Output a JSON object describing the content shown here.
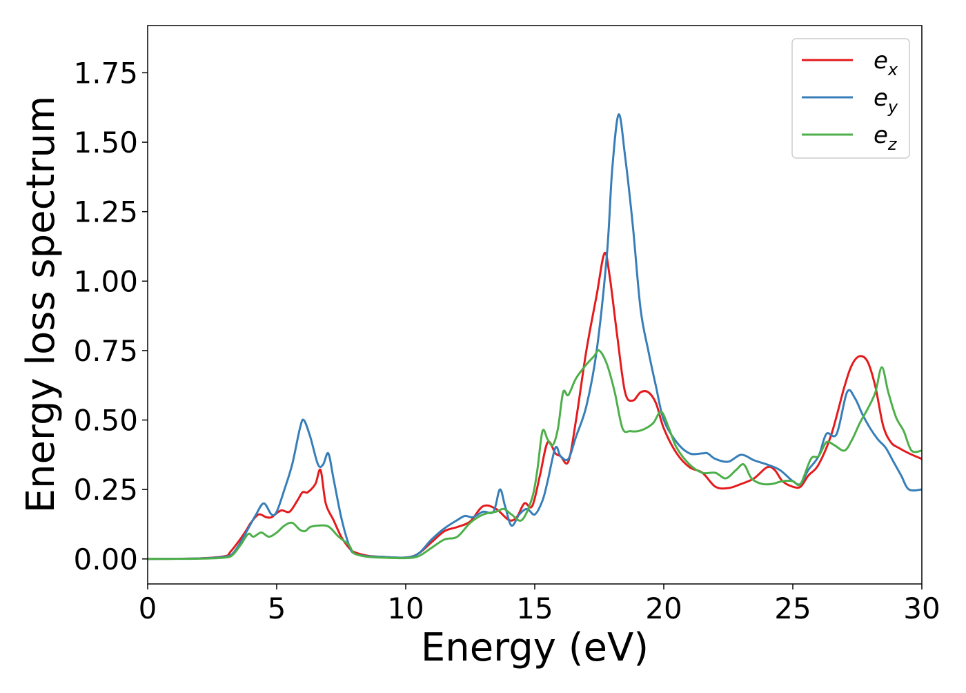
{
  "chart_data": {
    "type": "line",
    "title": "",
    "xlabel": "Energy (eV)",
    "ylabel": "Energy loss spectrum",
    "xlim": [
      0,
      30
    ],
    "ylim": [
      -0.09,
      1.92
    ],
    "xticks": [
      0,
      5,
      10,
      15,
      20,
      25,
      30
    ],
    "xtick_labels": [
      "0",
      "5",
      "10",
      "15",
      "20",
      "25",
      "30"
    ],
    "yticks": [
      0.0,
      0.25,
      0.5,
      0.75,
      1.0,
      1.25,
      1.5,
      1.75
    ],
    "ytick_labels": [
      "0.00",
      "0.25",
      "0.50",
      "0.75",
      "1.00",
      "1.25",
      "1.50",
      "1.75"
    ],
    "grid": false,
    "legend_position": "top-right",
    "series": [
      {
        "name": "e_x",
        "label_base": "e",
        "label_sub": "x",
        "color": "#e41a1c",
        "x": [
          0,
          2,
          3,
          3.2,
          3.5,
          3.8,
          4.0,
          4.3,
          4.6,
          4.8,
          5.0,
          5.2,
          5.5,
          5.8,
          6.0,
          6.2,
          6.5,
          6.7,
          6.9,
          7.2,
          7.5,
          7.8,
          8.0,
          8.5,
          9.0,
          10.0,
          10.5,
          11.0,
          11.5,
          12.0,
          12.5,
          13.0,
          13.5,
          14.0,
          14.3,
          14.6,
          14.9,
          15.2,
          15.5,
          15.8,
          16.0,
          16.3,
          16.6,
          17.0,
          17.4,
          17.7,
          17.9,
          18.2,
          18.5,
          18.8,
          19.1,
          19.4,
          19.7,
          20.0,
          20.5,
          21.0,
          21.5,
          22.0,
          22.5,
          23.0,
          23.5,
          24.0,
          24.3,
          24.6,
          25.0,
          25.3,
          25.6,
          26.0,
          26.5,
          27.0,
          27.3,
          27.6,
          27.9,
          28.2,
          28.5,
          28.8,
          29.1,
          29.5,
          30.0
        ],
        "y": [
          0,
          0.002,
          0.01,
          0.025,
          0.06,
          0.1,
          0.13,
          0.16,
          0.15,
          0.15,
          0.165,
          0.175,
          0.17,
          0.21,
          0.24,
          0.24,
          0.27,
          0.32,
          0.2,
          0.14,
          0.08,
          0.04,
          0.025,
          0.012,
          0.008,
          0.005,
          0.02,
          0.06,
          0.1,
          0.115,
          0.135,
          0.19,
          0.18,
          0.14,
          0.15,
          0.2,
          0.19,
          0.3,
          0.42,
          0.38,
          0.37,
          0.35,
          0.5,
          0.75,
          0.95,
          1.1,
          1.02,
          0.8,
          0.6,
          0.57,
          0.6,
          0.6,
          0.56,
          0.47,
          0.38,
          0.33,
          0.31,
          0.26,
          0.255,
          0.27,
          0.29,
          0.33,
          0.32,
          0.28,
          0.26,
          0.26,
          0.3,
          0.34,
          0.45,
          0.62,
          0.7,
          0.73,
          0.71,
          0.62,
          0.48,
          0.42,
          0.4,
          0.38,
          0.36
        ]
      },
      {
        "name": "e_y",
        "label_base": "e",
        "label_sub": "y",
        "color": "#377eb8",
        "x": [
          0,
          2,
          3,
          3.3,
          3.6,
          3.9,
          4.2,
          4.5,
          4.8,
          5.0,
          5.3,
          5.6,
          5.9,
          6.05,
          6.3,
          6.6,
          6.8,
          7.0,
          7.2,
          7.5,
          7.8,
          8.0,
          8.5,
          9.0,
          10.0,
          10.5,
          11.0,
          11.5,
          12.0,
          12.3,
          12.6,
          13.0,
          13.4,
          13.65,
          13.85,
          14.1,
          14.4,
          14.7,
          15.0,
          15.3,
          15.5,
          15.8,
          16.0,
          16.3,
          16.6,
          17.0,
          17.4,
          17.8,
          18.0,
          18.25,
          18.5,
          18.8,
          19.1,
          19.4,
          19.7,
          20.0,
          20.5,
          21.0,
          21.5,
          21.7,
          22.0,
          22.5,
          23.0,
          23.5,
          24.0,
          24.5,
          25.0,
          25.3,
          25.6,
          26.0,
          26.3,
          26.7,
          27.1,
          27.4,
          27.7,
          28.0,
          28.3,
          28.6,
          28.9,
          29.2,
          29.5,
          30.0
        ],
        "y": [
          0,
          0.002,
          0.008,
          0.02,
          0.06,
          0.11,
          0.16,
          0.2,
          0.16,
          0.17,
          0.25,
          0.34,
          0.47,
          0.5,
          0.44,
          0.34,
          0.34,
          0.38,
          0.29,
          0.15,
          0.05,
          0.02,
          0.01,
          0.008,
          0.005,
          0.02,
          0.07,
          0.11,
          0.14,
          0.155,
          0.15,
          0.17,
          0.17,
          0.25,
          0.19,
          0.12,
          0.16,
          0.18,
          0.16,
          0.21,
          0.28,
          0.4,
          0.37,
          0.36,
          0.44,
          0.55,
          0.75,
          1.1,
          1.4,
          1.6,
          1.45,
          1.2,
          0.9,
          0.75,
          0.62,
          0.5,
          0.42,
          0.38,
          0.38,
          0.38,
          0.36,
          0.35,
          0.375,
          0.355,
          0.34,
          0.32,
          0.28,
          0.27,
          0.32,
          0.37,
          0.45,
          0.45,
          0.6,
          0.58,
          0.52,
          0.47,
          0.43,
          0.4,
          0.35,
          0.3,
          0.25,
          0.25
        ]
      },
      {
        "name": "e_z",
        "label_base": "e",
        "label_sub": "z",
        "color": "#4daf4a",
        "x": [
          0,
          2,
          3,
          3.3,
          3.6,
          3.9,
          4.1,
          4.4,
          4.7,
          5.0,
          5.3,
          5.6,
          5.9,
          6.1,
          6.3,
          6.6,
          6.9,
          7.1,
          7.4,
          7.8,
          8.0,
          8.5,
          9.0,
          10.0,
          10.5,
          11.0,
          11.5,
          12.0,
          12.5,
          13.0,
          13.5,
          13.8,
          14.1,
          14.5,
          14.9,
          15.1,
          15.3,
          15.5,
          15.7,
          15.9,
          16.1,
          16.3,
          16.6,
          17.0,
          17.3,
          17.5,
          17.8,
          18.1,
          18.4,
          18.7,
          19.0,
          19.3,
          19.6,
          19.9,
          20.2,
          20.5,
          21.0,
          21.5,
          22.0,
          22.4,
          22.8,
          23.1,
          23.4,
          23.8,
          24.2,
          24.6,
          25.0,
          25.3,
          25.7,
          26.0,
          26.3,
          26.6,
          27.0,
          27.3,
          27.6,
          27.9,
          28.2,
          28.45,
          28.7,
          29.0,
          29.3,
          29.6,
          30.0
        ],
        "y": [
          0,
          0.001,
          0.005,
          0.015,
          0.05,
          0.09,
          0.08,
          0.095,
          0.08,
          0.095,
          0.12,
          0.13,
          0.105,
          0.1,
          0.115,
          0.12,
          0.12,
          0.11,
          0.08,
          0.05,
          0.02,
          0.008,
          0.005,
          0.003,
          0.01,
          0.04,
          0.07,
          0.08,
          0.13,
          0.16,
          0.17,
          0.18,
          0.16,
          0.14,
          0.22,
          0.32,
          0.46,
          0.43,
          0.41,
          0.47,
          0.6,
          0.59,
          0.65,
          0.7,
          0.73,
          0.75,
          0.7,
          0.6,
          0.47,
          0.46,
          0.46,
          0.47,
          0.49,
          0.53,
          0.47,
          0.4,
          0.34,
          0.31,
          0.31,
          0.29,
          0.32,
          0.34,
          0.29,
          0.27,
          0.27,
          0.28,
          0.28,
          0.27,
          0.36,
          0.37,
          0.42,
          0.41,
          0.39,
          0.43,
          0.49,
          0.54,
          0.6,
          0.69,
          0.6,
          0.51,
          0.46,
          0.39,
          0.39
        ]
      }
    ]
  }
}
